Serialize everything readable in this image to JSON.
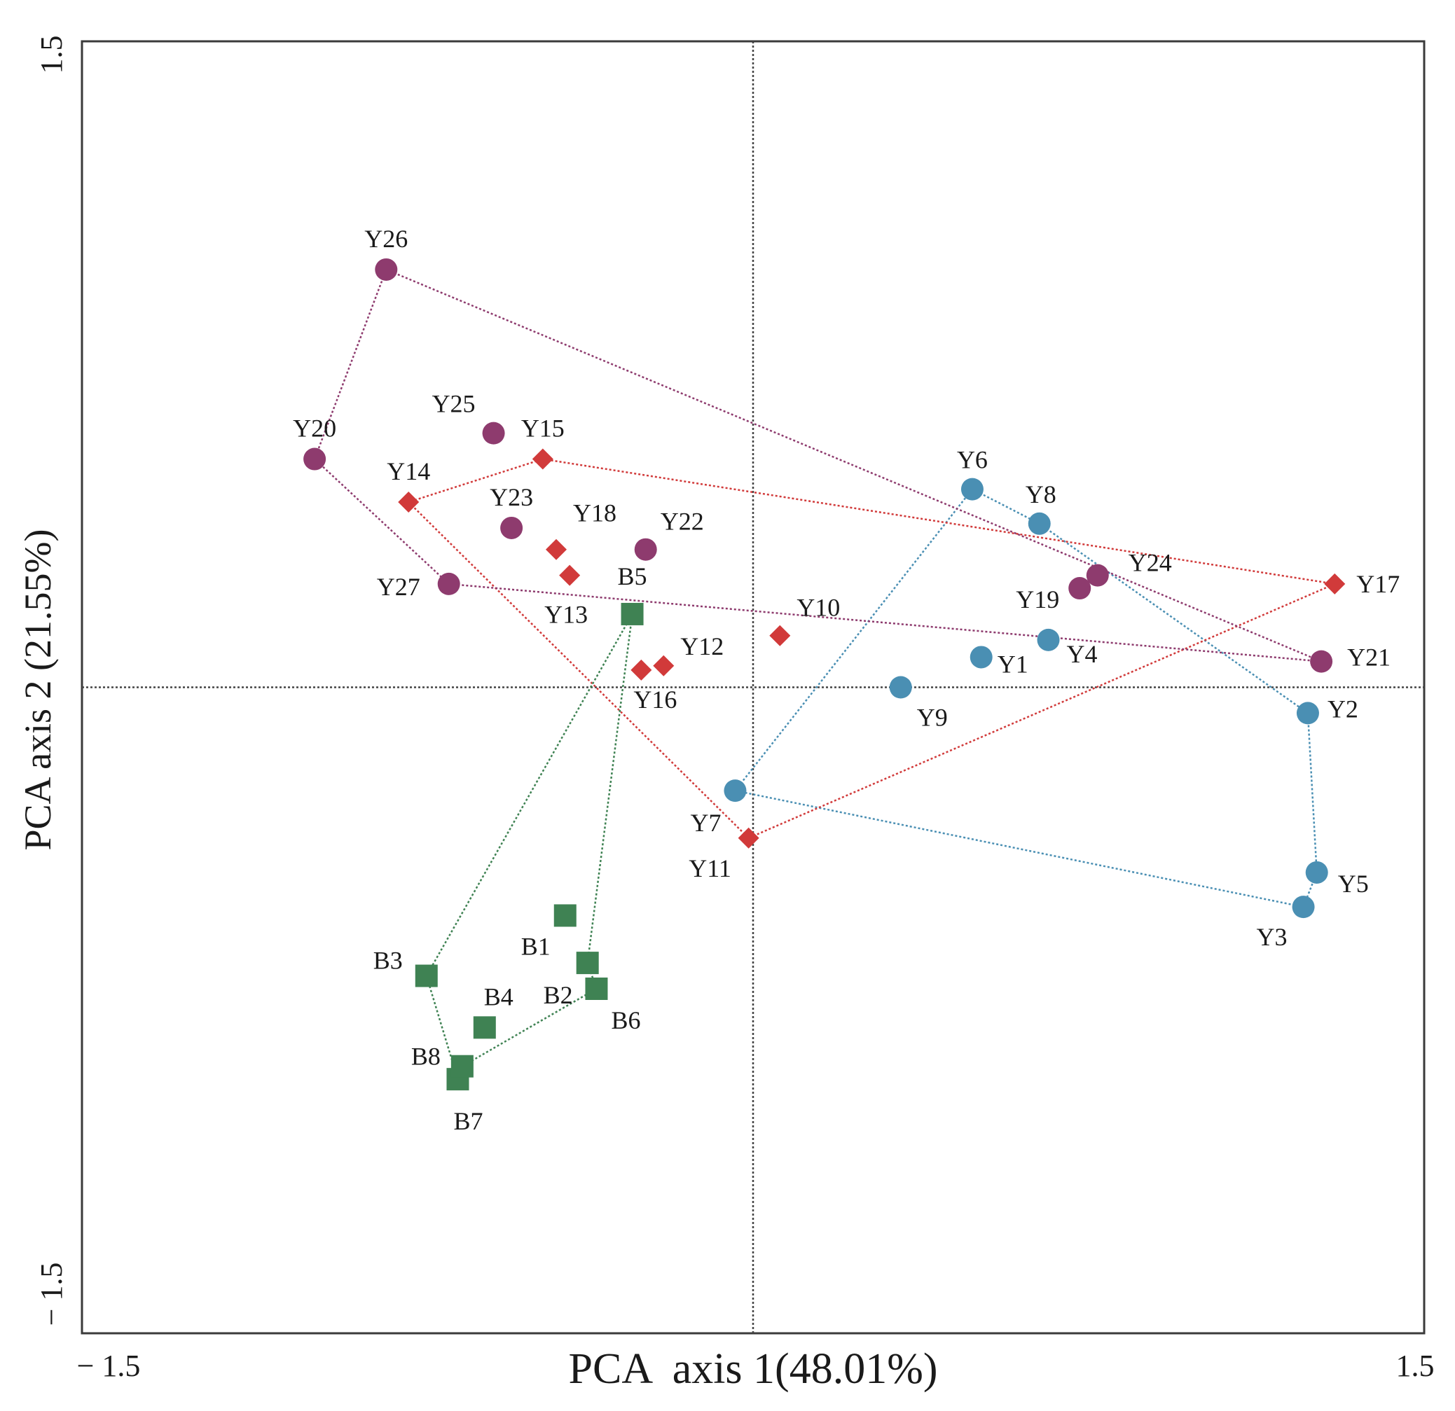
{
  "chart_data": {
    "type": "scatter",
    "title": "",
    "xlabel": "PCA  axis 1(48.01%)",
    "ylabel": "PCA axis 2 (21.55%)",
    "xlim": [
      -1.5,
      1.5
    ],
    "ylim": [
      -1.5,
      1.5
    ],
    "x_ticks": [
      {
        "value": -1.5,
        "label": "− 1.5"
      },
      {
        "value": 1.5,
        "label": "1.5"
      }
    ],
    "y_ticks": [
      {
        "value": 1.5,
        "label": "1.5"
      },
      {
        "value": -1.5,
        "label": "− 1.5"
      }
    ],
    "grid": false,
    "reference_lines": {
      "x": 0,
      "y": 0
    },
    "series": [
      {
        "name": "Y-circle-blue",
        "color": "#4a8fb3",
        "marker": "circle",
        "hull": [
          "Y6",
          "Y8",
          "Y2",
          "Y5",
          "Y3",
          "Y7"
        ],
        "points": [
          {
            "label": "Y1",
            "x": 0.51,
            "y": 0.07
          },
          {
            "label": "Y2",
            "x": 1.24,
            "y": -0.06
          },
          {
            "label": "Y3",
            "x": 1.23,
            "y": -0.51
          },
          {
            "label": "Y4",
            "x": 0.66,
            "y": 0.11
          },
          {
            "label": "Y5",
            "x": 1.26,
            "y": -0.43
          },
          {
            "label": "Y6",
            "x": 0.49,
            "y": 0.46
          },
          {
            "label": "Y7",
            "x": -0.04,
            "y": -0.24
          },
          {
            "label": "Y8",
            "x": 0.64,
            "y": 0.38
          },
          {
            "label": "Y9",
            "x": 0.33,
            "y": 0.0
          }
        ]
      },
      {
        "name": "Y-diamond-red",
        "color": "#d13a3a",
        "marker": "diamond",
        "hull": [
          "Y15",
          "Y17",
          "Y11",
          "Y14"
        ],
        "points": [
          {
            "label": "Y10",
            "x": 0.06,
            "y": 0.12
          },
          {
            "label": "Y11",
            "x": -0.01,
            "y": -0.35
          },
          {
            "label": "Y12",
            "x": -0.2,
            "y": 0.05
          },
          {
            "label": "Y13",
            "x": -0.41,
            "y": 0.26
          },
          {
            "label": "Y14",
            "x": -0.77,
            "y": 0.43
          },
          {
            "label": "Y15",
            "x": -0.47,
            "y": 0.53
          },
          {
            "label": "Y16",
            "x": -0.25,
            "y": 0.04
          },
          {
            "label": "Y17",
            "x": 1.3,
            "y": 0.24
          },
          {
            "label": "Y18",
            "x": -0.44,
            "y": 0.32
          }
        ]
      },
      {
        "name": "Y-circle-purple",
        "color": "#8e3b6e",
        "marker": "circle",
        "hull": [
          "Y26",
          "Y21",
          "Y27",
          "Y20"
        ],
        "points": [
          {
            "label": "Y19",
            "x": 0.73,
            "y": 0.23
          },
          {
            "label": "Y20",
            "x": -0.98,
            "y": 0.53
          },
          {
            "label": "Y21",
            "x": 1.27,
            "y": 0.06
          },
          {
            "label": "Y22",
            "x": -0.24,
            "y": 0.32
          },
          {
            "label": "Y23",
            "x": -0.54,
            "y": 0.37
          },
          {
            "label": "Y24",
            "x": 0.77,
            "y": 0.26
          },
          {
            "label": "Y25",
            "x": -0.58,
            "y": 0.59
          },
          {
            "label": "Y26",
            "x": -0.82,
            "y": 0.97
          },
          {
            "label": "Y27",
            "x": -0.68,
            "y": 0.24
          }
        ]
      },
      {
        "name": "B-square-green",
        "color": "#3f8253",
        "marker": "square",
        "hull": [
          "B5",
          "B2",
          "B6",
          "B8",
          "B7",
          "B3"
        ],
        "points": [
          {
            "label": "B1",
            "x": -0.42,
            "y": -0.53
          },
          {
            "label": "B2",
            "x": -0.37,
            "y": -0.64
          },
          {
            "label": "B3",
            "x": -0.73,
            "y": -0.67
          },
          {
            "label": "B4",
            "x": -0.6,
            "y": -0.79
          },
          {
            "label": "B5",
            "x": -0.27,
            "y": 0.17
          },
          {
            "label": "B6",
            "x": -0.35,
            "y": -0.7
          },
          {
            "label": "B7",
            "x": -0.66,
            "y": -0.91
          },
          {
            "label": "B8",
            "x": -0.65,
            "y": -0.88
          }
        ]
      }
    ]
  }
}
